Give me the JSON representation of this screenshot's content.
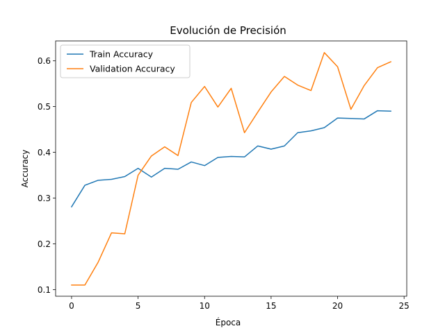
{
  "chart_data": {
    "type": "line",
    "title": "Evolución de Precisión",
    "xlabel": "Época",
    "ylabel": "Accuracy",
    "xlim": [
      -1.2,
      25.2
    ],
    "ylim": [
      0.0855,
      0.6435
    ],
    "xticks": [
      0,
      5,
      10,
      15,
      20,
      25
    ],
    "yticks": [
      0.1,
      0.2,
      0.3,
      0.4,
      0.5,
      0.6
    ],
    "grid": false,
    "legend": "top-left",
    "x": [
      0,
      1,
      2,
      3,
      4,
      5,
      6,
      7,
      8,
      9,
      10,
      11,
      12,
      13,
      14,
      15,
      16,
      17,
      18,
      19,
      20,
      21,
      22,
      23,
      24
    ],
    "series": [
      {
        "name": "Train Accuracy",
        "color": "#1f77b4",
        "values": [
          0.281,
          0.328,
          0.339,
          0.341,
          0.347,
          0.365,
          0.346,
          0.365,
          0.363,
          0.379,
          0.371,
          0.389,
          0.391,
          0.39,
          0.414,
          0.407,
          0.414,
          0.443,
          0.447,
          0.454,
          0.475,
          0.474,
          0.473,
          0.491,
          0.49
        ]
      },
      {
        "name": "Validation Accuracy",
        "color": "#ff7f0e",
        "values": [
          0.11,
          0.11,
          0.16,
          0.224,
          0.222,
          0.35,
          0.392,
          0.412,
          0.393,
          0.509,
          0.544,
          0.499,
          0.54,
          0.443,
          0.488,
          0.532,
          0.566,
          0.547,
          0.535,
          0.618,
          0.587,
          0.494,
          0.546,
          0.585,
          0.598
        ]
      }
    ]
  }
}
